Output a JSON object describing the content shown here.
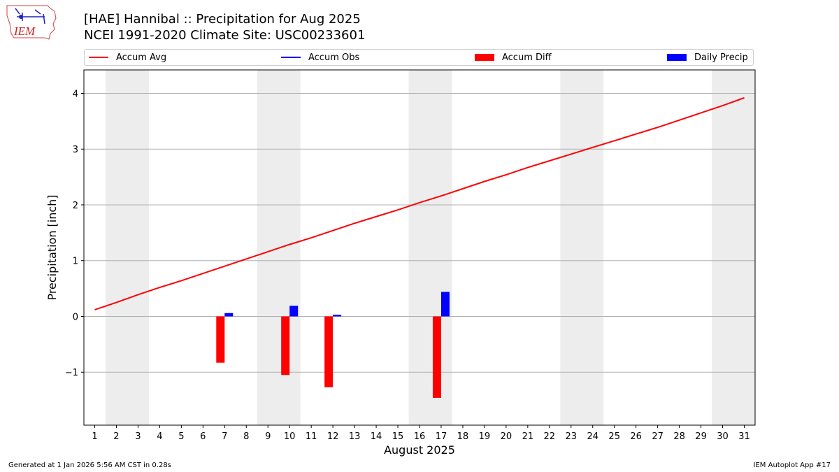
{
  "header": {
    "title_line1": "[HAE] Hannibal :: Precipitation for Aug 2025",
    "title_line2": "NCEI 1991-2020 Climate Site: USC00233601",
    "logo_text": "IEM"
  },
  "legend": {
    "items": [
      {
        "label": "Accum Avg",
        "kind": "line",
        "color": "#ff0000"
      },
      {
        "label": "Accum Obs",
        "kind": "line",
        "color": "#0000ff"
      },
      {
        "label": "Accum Diff",
        "kind": "bar",
        "color": "#ff0000"
      },
      {
        "label": "Daily Precip",
        "kind": "bar",
        "color": "#0000ff"
      }
    ]
  },
  "footer": {
    "left": "Generated at 1 Jan 2026 5:56 AM CST in 0.28s",
    "right": "IEM Autoplot App #17"
  },
  "chart_data": {
    "type": "bar",
    "xlabel": "August 2025",
    "ylabel": "Precipitation [inch]",
    "xlim": [
      0.5,
      31.5
    ],
    "ylim": [
      -1.95,
      4.42
    ],
    "yticks": [
      4,
      3,
      2,
      1,
      0,
      -1
    ],
    "ytick_labels": [
      "4",
      "3",
      "2",
      "1",
      "0",
      "−1"
    ],
    "grid": "horizontal",
    "legend_position": "top",
    "weekend_shading": [
      [
        1.5,
        3.5
      ],
      [
        8.5,
        10.5
      ],
      [
        15.5,
        17.5
      ],
      [
        22.5,
        24.5
      ],
      [
        29.5,
        31.5
      ]
    ],
    "days": [
      1,
      2,
      3,
      4,
      5,
      6,
      7,
      8,
      9,
      10,
      11,
      12,
      13,
      14,
      15,
      16,
      17,
      18,
      19,
      20,
      21,
      22,
      23,
      24,
      25,
      26,
      27,
      28,
      29,
      30,
      31
    ],
    "series": [
      {
        "name": "Accum Avg",
        "kind": "line",
        "color": "#ff0000",
        "values": [
          0.12,
          0.25,
          0.39,
          0.52,
          0.64,
          0.77,
          0.9,
          1.03,
          1.16,
          1.29,
          1.41,
          1.54,
          1.67,
          1.79,
          1.91,
          2.04,
          2.16,
          2.29,
          2.42,
          2.54,
          2.67,
          2.79,
          2.91,
          3.03,
          3.15,
          3.27,
          3.39,
          3.52,
          3.65,
          3.78,
          3.92
        ]
      },
      {
        "name": "Accum Diff",
        "kind": "bar",
        "color": "#ff0000",
        "points": [
          {
            "day": 7,
            "value": -0.83
          },
          {
            "day": 10,
            "value": -1.05
          },
          {
            "day": 12,
            "value": -1.27
          },
          {
            "day": 17,
            "value": -1.46
          }
        ]
      },
      {
        "name": "Daily Precip",
        "kind": "bar",
        "color": "#0000ff",
        "points": [
          {
            "day": 7,
            "value": 0.06
          },
          {
            "day": 10,
            "value": 0.19
          },
          {
            "day": 12,
            "value": 0.03
          },
          {
            "day": 17,
            "value": 0.44
          }
        ]
      }
    ]
  }
}
